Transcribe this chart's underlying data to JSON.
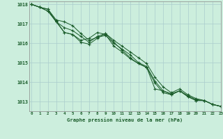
{
  "title": "Graphe pression niveau de la mer (hPa)",
  "bg_color": "#cceedd",
  "grid_color": "#aacccc",
  "line_color": "#1a5c2a",
  "marker_color": "#1a5c2a",
  "xlim": [
    -0.3,
    23
  ],
  "ylim": [
    1012.5,
    1018.15
  ],
  "yticks": [
    1013,
    1014,
    1015,
    1016,
    1017,
    1018
  ],
  "xticks": [
    0,
    1,
    2,
    3,
    4,
    5,
    6,
    7,
    8,
    9,
    10,
    11,
    12,
    13,
    14,
    15,
    16,
    17,
    18,
    19,
    20,
    21,
    22,
    23
  ],
  "series": [
    [
      1018.0,
      1017.85,
      1017.75,
      1017.2,
      1017.1,
      1016.9,
      1016.5,
      1016.15,
      1016.3,
      1016.4,
      1016.0,
      1015.7,
      1015.4,
      1015.0,
      1014.8,
      1014.05,
      1013.55,
      1013.4,
      1013.55,
      1013.25,
      1013.05,
      1013.05,
      1012.85,
      1012.75
    ],
    [
      1018.0,
      1017.85,
      1017.65,
      1017.15,
      1016.55,
      1016.45,
      1016.15,
      1016.25,
      1016.55,
      1016.45,
      1015.85,
      1015.55,
      1015.2,
      1014.95,
      1014.75,
      1013.65,
      1013.55,
      1013.35,
      1013.55,
      1013.3,
      1013.1,
      1013.05,
      1012.85,
      1012.75
    ],
    [
      1018.0,
      1017.85,
      1017.65,
      1017.1,
      1016.8,
      1016.65,
      1016.35,
      1016.05,
      1016.35,
      1016.5,
      1016.15,
      1015.85,
      1015.55,
      1015.25,
      1014.95,
      1014.25,
      1013.75,
      1013.45,
      1013.65,
      1013.35,
      1013.15,
      1013.05,
      1012.85,
      1012.75
    ],
    [
      1018.0,
      1017.85,
      1017.75,
      1017.1,
      1016.55,
      1016.45,
      1016.05,
      1015.95,
      1016.25,
      1016.5,
      1016.05,
      1015.65,
      1015.25,
      1014.95,
      1014.75,
      1013.95,
      1013.45,
      1013.35,
      1013.55,
      1013.25,
      1013.05,
      1013.05,
      1012.85,
      1012.75
    ]
  ]
}
